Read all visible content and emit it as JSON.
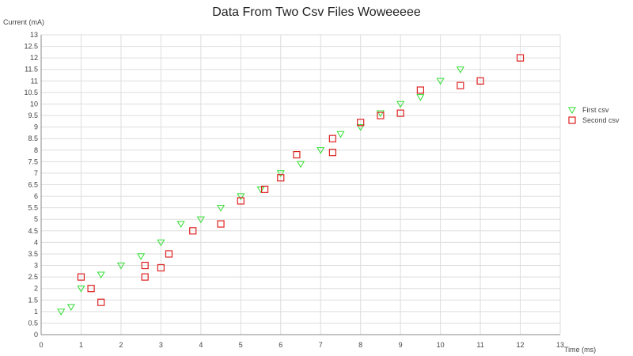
{
  "chart_data": {
    "type": "scatter",
    "title": "Data From Two Csv Files Woweeeee",
    "xlabel": "Time (ms)",
    "ylabel": "Current (mA)",
    "xlim": [
      0,
      13
    ],
    "ylim": [
      0,
      13
    ],
    "x_ticks": [
      0,
      1,
      2,
      3,
      4,
      5,
      6,
      7,
      8,
      9,
      10,
      11,
      12,
      13
    ],
    "y_ticks": [
      0,
      0.5,
      1,
      1.5,
      2,
      2.5,
      3,
      3.5,
      4,
      4.5,
      5,
      5.5,
      6,
      6.5,
      7,
      7.5,
      8,
      8.5,
      9,
      9.5,
      10,
      10.5,
      11,
      11.5,
      12,
      12.5,
      13
    ],
    "grid": true,
    "legend_position": "right",
    "series": [
      {
        "name": "First csv",
        "marker": "triangle-down",
        "color": "#33dd33",
        "points": [
          [
            0.5,
            1.0
          ],
          [
            0.75,
            1.2
          ],
          [
            1.0,
            2.0
          ],
          [
            1.5,
            2.6
          ],
          [
            2.0,
            3.0
          ],
          [
            2.5,
            3.4
          ],
          [
            3.0,
            4.0
          ],
          [
            3.5,
            4.8
          ],
          [
            4.0,
            5.0
          ],
          [
            4.5,
            5.5
          ],
          [
            5.0,
            6.0
          ],
          [
            5.5,
            6.3
          ],
          [
            6.0,
            7.0
          ],
          [
            6.5,
            7.4
          ],
          [
            7.0,
            8.0
          ],
          [
            7.5,
            8.7
          ],
          [
            8.0,
            9.0
          ],
          [
            8.5,
            9.6
          ],
          [
            9.0,
            10.0
          ],
          [
            9.5,
            10.3
          ],
          [
            10.0,
            11.0
          ],
          [
            10.5,
            11.5
          ]
        ]
      },
      {
        "name": "Second csv",
        "marker": "square",
        "color": "#dd2222",
        "points": [
          [
            1.0,
            2.5
          ],
          [
            1.25,
            2.0
          ],
          [
            1.5,
            1.4
          ],
          [
            2.6,
            2.5
          ],
          [
            2.6,
            3.0
          ],
          [
            3.0,
            2.9
          ],
          [
            3.2,
            3.5
          ],
          [
            3.8,
            4.5
          ],
          [
            4.5,
            4.8
          ],
          [
            5.0,
            5.8
          ],
          [
            5.6,
            6.3
          ],
          [
            6.0,
            6.8
          ],
          [
            6.4,
            7.8
          ],
          [
            7.3,
            7.9
          ],
          [
            7.3,
            8.5
          ],
          [
            8.0,
            9.2
          ],
          [
            8.5,
            9.5
          ],
          [
            9.0,
            9.6
          ],
          [
            9.5,
            10.6
          ],
          [
            10.5,
            10.8
          ],
          [
            11.0,
            11.0
          ],
          [
            12.0,
            12.0
          ]
        ]
      }
    ]
  }
}
